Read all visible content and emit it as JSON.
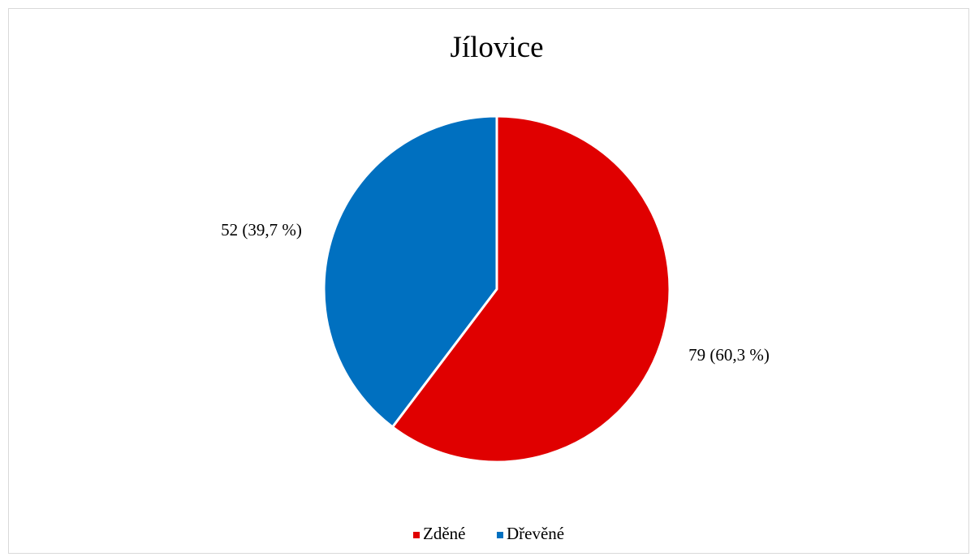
{
  "chart_data": {
    "type": "pie",
    "title": "Jílovice",
    "slices": [
      {
        "name": "Zděné",
        "value": 79,
        "percent": 60.3,
        "label": "79 (60,3 %)",
        "color": "#e00000"
      },
      {
        "name": "Dřevěné",
        "value": 52,
        "percent": 39.7,
        "label": "52 (39,7 %)",
        "color": "#0070c0"
      }
    ],
    "legend_position": "bottom"
  }
}
